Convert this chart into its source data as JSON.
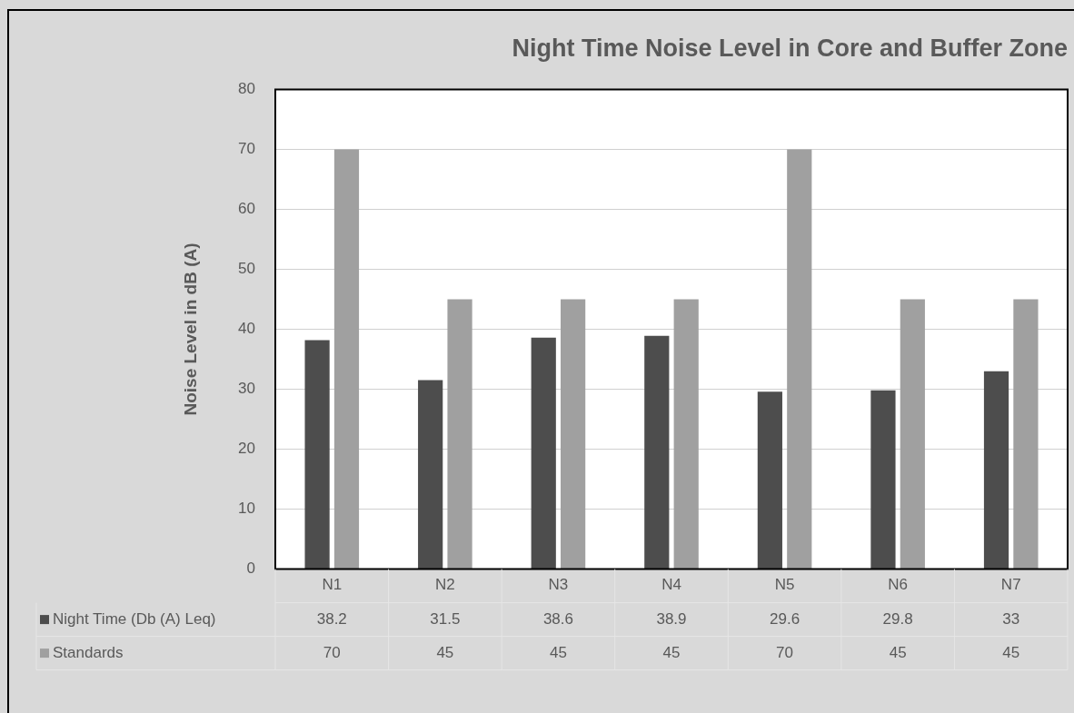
{
  "chart_data": {
    "type": "bar",
    "title": "Night Time Noise Level in Core and Buffer Zone",
    "ylabel": "Noise Level in dB (A)",
    "categories": [
      "N1",
      "N2",
      "N3",
      "N4",
      "N5",
      "N6",
      "N7"
    ],
    "series": [
      {
        "name": "Night Time (Db (A) Leq)",
        "color": "#4d4d4d",
        "values": [
          38.2,
          31.5,
          38.6,
          38.9,
          29.6,
          29.8,
          33
        ]
      },
      {
        "name": "Standards",
        "color": "#a0a0a0",
        "values": [
          70,
          45,
          45,
          45,
          70,
          45,
          45
        ]
      }
    ],
    "ylim": [
      0,
      80
    ],
    "yticks": [
      0,
      10,
      20,
      30,
      40,
      50,
      60,
      70,
      80
    ],
    "grid": "y",
    "legend": "bottom",
    "data_labels": true
  }
}
